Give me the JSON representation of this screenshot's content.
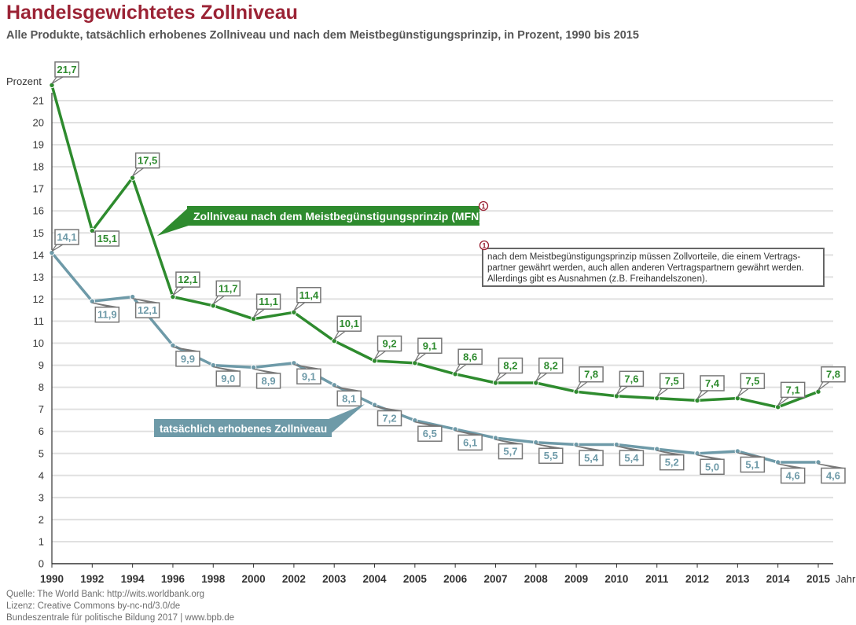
{
  "title": "Handelsgewichtetes Zollniveau",
  "subtitle": "Alle Produkte, tatsächlich erhobenes Zollniveau und nach dem Meistbegünstigungsprinzip, in Prozent, 1990 bis 2015",
  "footer": {
    "source": "Quelle: The World Bank: http://wits.worldbank.org",
    "license": "Lizenz: Creative Commons by-nc-nd/3.0/de",
    "publisher": "Bundeszentrale für politische Bildung 2017  |  www.bpb.de"
  },
  "colors": {
    "mfn": "#2e8b2e",
    "applied": "#6e9aa8",
    "title": "#9b2335",
    "grid": "#e0e0e0",
    "label_border": "#777777"
  },
  "chart_data": {
    "type": "line",
    "ylabel": "Prozent",
    "xlabel": "Jahr",
    "ylim": [
      0,
      21
    ],
    "y_ticks": [
      0,
      1,
      2,
      3,
      4,
      5,
      6,
      7,
      8,
      9,
      10,
      11,
      12,
      13,
      14,
      15,
      16,
      17,
      18,
      19,
      20,
      21
    ],
    "x": [
      "1990",
      "1992",
      "1994",
      "1996",
      "1998",
      "2000",
      "2002",
      "2003",
      "2004",
      "2005",
      "2006",
      "2007",
      "2008",
      "2009",
      "2010",
      "2011",
      "2012",
      "2013",
      "2014",
      "2015"
    ],
    "grid": true,
    "series": [
      {
        "name": "Zollniveau nach dem Meistbegünstigungsprinzip (MFN)",
        "values": [
          21.7,
          15.1,
          17.5,
          12.1,
          11.7,
          11.1,
          11.4,
          10.1,
          9.2,
          9.1,
          8.6,
          8.2,
          8.2,
          7.8,
          7.6,
          7.5,
          7.4,
          7.5,
          7.1,
          7.8
        ],
        "labels": [
          "21,7",
          "15,1",
          "17,5",
          "12,1",
          "11,7",
          "11,1",
          "11,4",
          "10,1",
          "9,2",
          "9,1",
          "8,6",
          "8,2",
          "8,2",
          "7,8",
          "7,6",
          "7,5",
          "7,4",
          "7,5",
          "7,1",
          "7,8"
        ]
      },
      {
        "name": "tatsächlich erhobenes Zollniveau",
        "values": [
          14.1,
          11.9,
          12.1,
          9.9,
          9.0,
          8.9,
          9.1,
          8.1,
          7.2,
          6.5,
          6.1,
          5.7,
          5.5,
          5.4,
          5.4,
          5.2,
          5.0,
          5.1,
          4.6,
          4.6
        ],
        "labels": [
          "14,1",
          "11,9",
          "12,1",
          "9,9",
          "9,0",
          "8,9",
          "9,1",
          "8,1",
          "7,2",
          "6,5",
          "6,1",
          "5,7",
          "5,5",
          "5,4",
          "5,4",
          "5,2",
          "5,0",
          "5,1",
          "4,6",
          "4,6"
        ]
      }
    ],
    "footnote_marker": "1",
    "footnote_lines": [
      "nach dem Meistbegünstigungsprinzip müssen Zollvorteile, die einem Vertrags-",
      "partner gewährt werden, auch allen anderen Vertragspartnern gewährt werden.",
      "Allerdings gibt es Ausnahmen (z.B. Freihandelszonen)."
    ]
  }
}
